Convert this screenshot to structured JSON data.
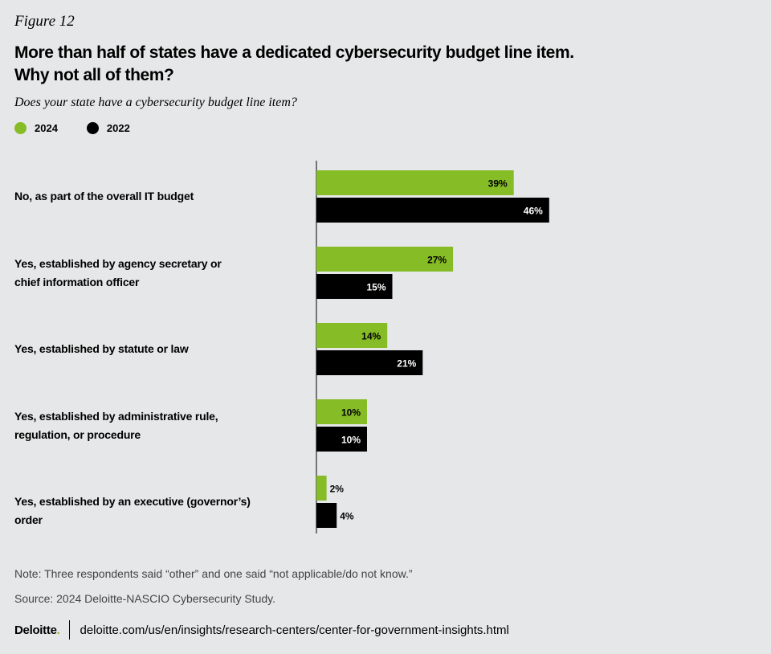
{
  "figure_label": "Figure 12",
  "title_line1": "More than half of states have a dedicated cybersecurity budget line item.",
  "title_line2": "Why not all of them?",
  "subtitle": "Does your state have a cybersecurity budget line item?",
  "colors": {
    "series_2024": "#86bc25",
    "series_2022": "#000000",
    "background": "#e6e7e8"
  },
  "chart_data": {
    "type": "bar",
    "orientation": "horizontal",
    "title": "Does your state have a cybersecurity budget line item?",
    "categories": [
      "No, as part of the overall IT budget",
      "Yes, established by agency secretary or chief information officer",
      "Yes, established by statute or law",
      "Yes, established by administrative rule, regulation, or procedure",
      "Yes, established by an executive (governor’s) order"
    ],
    "category_lines": [
      [
        "No, as part of the overall IT budget"
      ],
      [
        "Yes, established by agency secretary or",
        "chief information officer"
      ],
      [
        "Yes, established by statute or law"
      ],
      [
        "Yes, established by administrative rule,",
        "regulation, or procedure"
      ],
      [
        "Yes, established by an executive (governor’s) order"
      ]
    ],
    "series": [
      {
        "name": "2024",
        "values": [
          39,
          27,
          14,
          10,
          2
        ],
        "labels": [
          "39%",
          "27%",
          "14%",
          "10%",
          "2%"
        ]
      },
      {
        "name": "2022",
        "values": [
          46,
          15,
          21,
          10,
          4
        ],
        "labels": [
          "46%",
          "15%",
          "21%",
          "10%",
          "4%"
        ]
      }
    ],
    "unit": "%",
    "xlim": [
      0,
      100
    ],
    "legend_position": "top-left"
  },
  "note": "Note: Three respondents said “other” and one said “not applicable/do not know.”",
  "source": "Source: 2024 Deloitte-NASCIO Cybersecurity Study.",
  "footer": {
    "brand": "Deloitte",
    "brand_dot": ".",
    "url": "deloitte.com/us/en/insights/research-centers/center-for-government-insights.html"
  }
}
